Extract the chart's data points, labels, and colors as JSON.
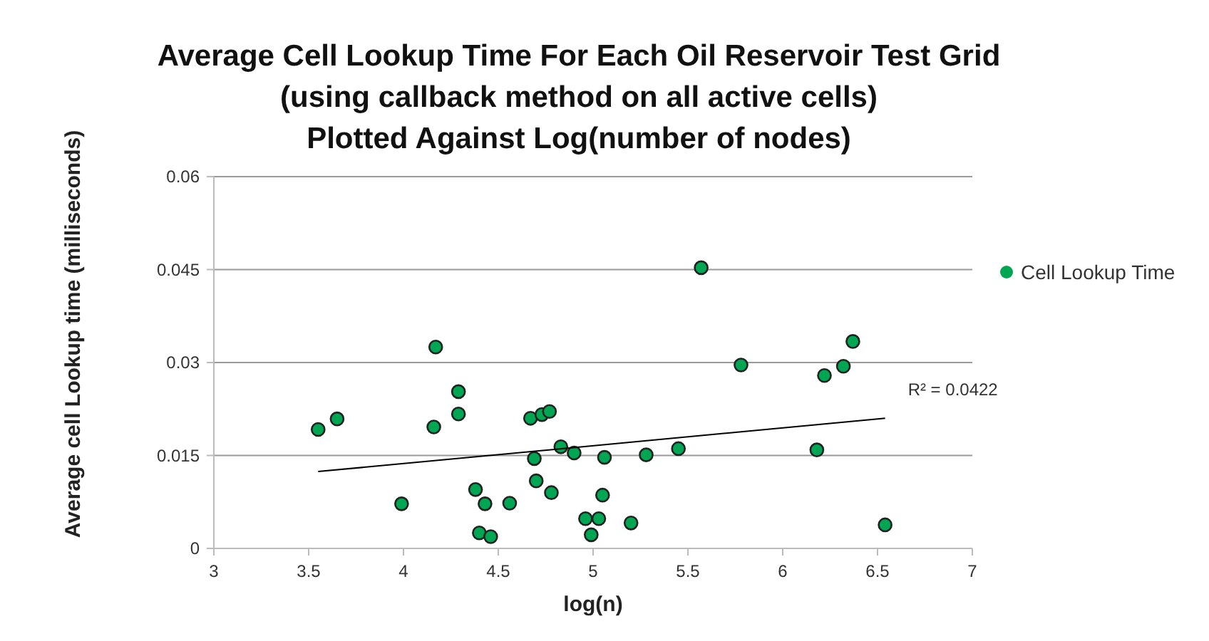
{
  "chart_data": {
    "type": "scatter",
    "title": "Average Cell Lookup Time For Each Oil Reservoir Test Grid\n(using callback method on all active cells)\nPlotted Against Log(number of nodes)",
    "xlabel": "log(n)",
    "ylabel": "Average cell Lookup time (milliseconds)",
    "xlim": [
      3,
      7
    ],
    "xticks": [
      3,
      3.5,
      4,
      4.5,
      5,
      5.5,
      6,
      6.5,
      7
    ],
    "ylim": [
      0,
      0.06
    ],
    "yticks": [
      0,
      0.015,
      0.03,
      0.045,
      0.06
    ],
    "grid": "y",
    "legend": "right",
    "annotations": [
      "R² = 0.0422"
    ],
    "series": [
      {
        "name": "Cell Lookup Time",
        "color": "#00a651",
        "marker": "circle",
        "x": [
          3.55,
          3.65,
          4.17,
          4.29,
          4.29,
          4.16,
          3.99,
          4.38,
          4.43,
          4.4,
          4.46,
          4.56,
          4.67,
          4.73,
          4.77,
          4.69,
          4.7,
          4.78,
          4.83,
          4.9,
          5.06,
          5.05,
          4.96,
          5.03,
          4.99,
          5.2,
          5.28,
          5.45,
          5.57,
          5.78,
          6.18,
          6.22,
          6.32,
          6.37,
          6.54
        ],
        "values": [
          0.0192,
          0.0209,
          0.0325,
          0.0253,
          0.0217,
          0.0196,
          0.0072,
          0.0095,
          0.0072,
          0.0025,
          0.0019,
          0.0073,
          0.021,
          0.0216,
          0.0221,
          0.0145,
          0.0109,
          0.009,
          0.0164,
          0.0154,
          0.0147,
          0.0086,
          0.0048,
          0.0048,
          0.0022,
          0.0041,
          0.0151,
          0.0161,
          0.0453,
          0.0296,
          0.0159,
          0.0279,
          0.0294,
          0.0334,
          0.0038
        ]
      },
      {
        "type": "line",
        "color": "#000000",
        "marker": "none",
        "x": [
          3.55,
          6.54
        ],
        "values": [
          0.0124,
          0.021
        ]
      }
    ]
  }
}
